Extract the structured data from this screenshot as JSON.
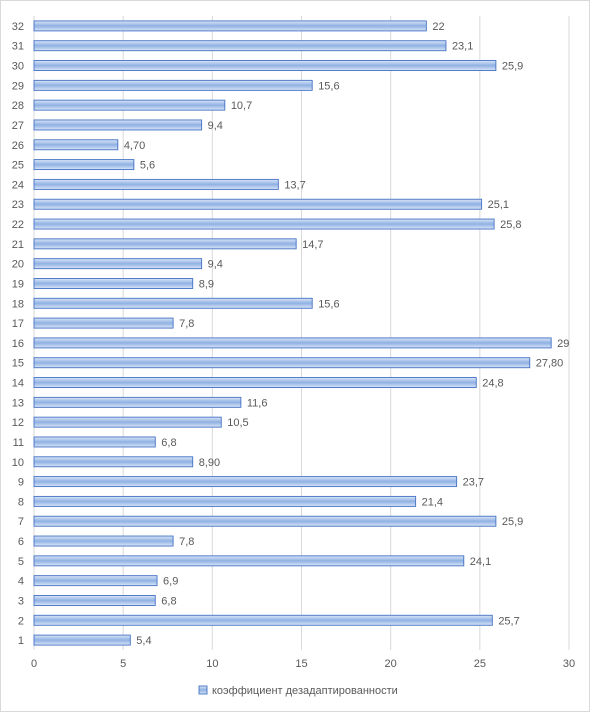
{
  "chart_data": {
    "type": "bar",
    "orientation": "horizontal",
    "categories": [
      "1",
      "2",
      "3",
      "4",
      "5",
      "6",
      "7",
      "8",
      "9",
      "10",
      "11",
      "12",
      "13",
      "14",
      "15",
      "16",
      "17",
      "18",
      "19",
      "20",
      "21",
      "22",
      "23",
      "24",
      "25",
      "26",
      "27",
      "28",
      "29",
      "30",
      "31",
      "32"
    ],
    "series": [
      {
        "name": "коэффициент дезадаптированности",
        "values": [
          5.4,
          25.7,
          6.8,
          6.9,
          24.1,
          7.8,
          25.9,
          21.4,
          23.7,
          8.9,
          6.8,
          10.5,
          11.6,
          24.8,
          27.8,
          29,
          7.8,
          15.6,
          8.9,
          9.4,
          14.7,
          25.8,
          25.1,
          13.7,
          5.6,
          4.7,
          9.4,
          10.7,
          15.6,
          25.9,
          23.1,
          22
        ],
        "labels": [
          "5,4",
          "25,7",
          "6,8",
          "6,9",
          "24,1",
          "7,8",
          "25,9",
          "21,4",
          "23,7",
          "8,90",
          "6,8",
          "10,5",
          "11,6",
          "24,8",
          "27,80",
          "29",
          "7,8",
          "15,6",
          "8,9",
          "9,4",
          "14,7",
          "25,8",
          "25,1",
          "13,7",
          "5,6",
          "4,70",
          "9,4",
          "10,7",
          "15,6",
          "25,9",
          "23,1",
          "22"
        ]
      }
    ],
    "x_ticks": [
      "0",
      "5",
      "10",
      "15",
      "20",
      "25",
      "30"
    ],
    "xlim": [
      0,
      30
    ],
    "title": "",
    "xlabel": "",
    "ylabel": "",
    "grid": "vertical",
    "legend": "bottom",
    "colors": {
      "bar_fill_light": "#dbe6f7",
      "bar_fill_dark": "#8fb1e3",
      "bar_stroke": "#4472c4",
      "grid": "#d9d9d9",
      "text": "#595959"
    }
  }
}
